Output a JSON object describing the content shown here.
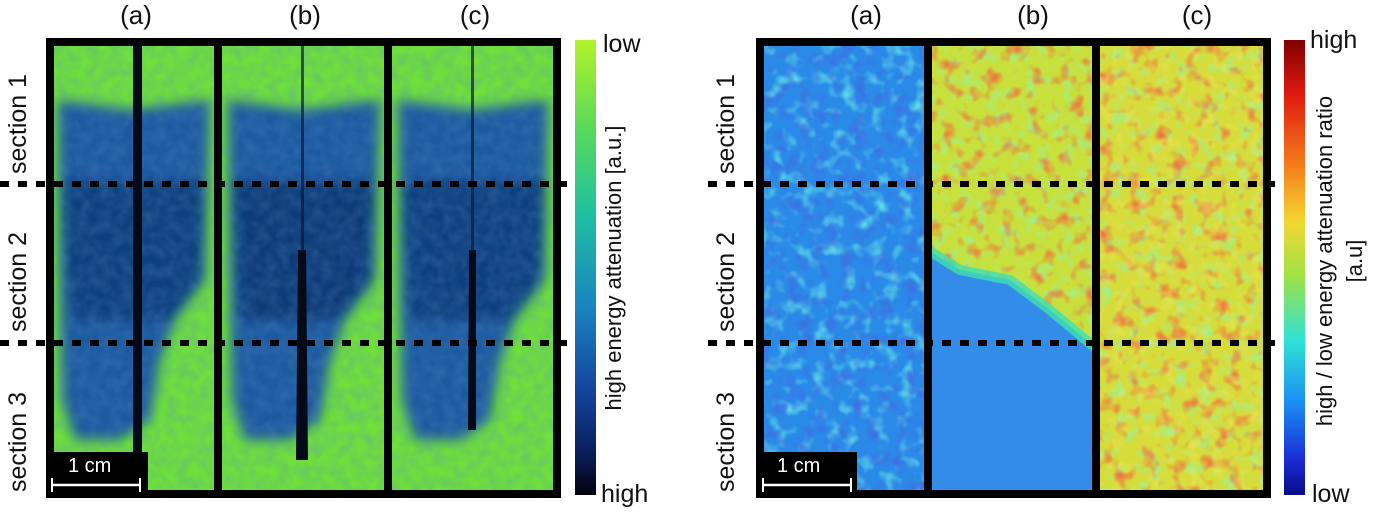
{
  "left_figure": {
    "column_labels": [
      "(a)",
      "(b)",
      "(c)"
    ],
    "section_labels": [
      "section 1",
      "section 2",
      "section 3"
    ],
    "scale_bar": "1 cm",
    "colorbar": {
      "top": "low",
      "bottom": "high",
      "title": "high energy attenuation [a.u.]",
      "colors": [
        "#a6f02e",
        "#3fd07a",
        "#1ab0b8",
        "#1a7fc0",
        "#1550a0",
        "#0a2a68",
        "#050a20"
      ]
    }
  },
  "right_figure": {
    "column_labels": [
      "(a)",
      "(b)",
      "(c)"
    ],
    "section_labels": [
      "section 1",
      "section 2",
      "section 3"
    ],
    "scale_bar": "1 cm",
    "colorbar": {
      "top": "high",
      "bottom": "low",
      "title": "high / low energy attenuation ratio",
      "unit": "[a.u]",
      "colors": [
        "#8a0000",
        "#e02010",
        "#f07818",
        "#f0d030",
        "#a0e040",
        "#30e0d0",
        "#1890f0",
        "#1830d0",
        "#0a0a90"
      ]
    }
  }
}
